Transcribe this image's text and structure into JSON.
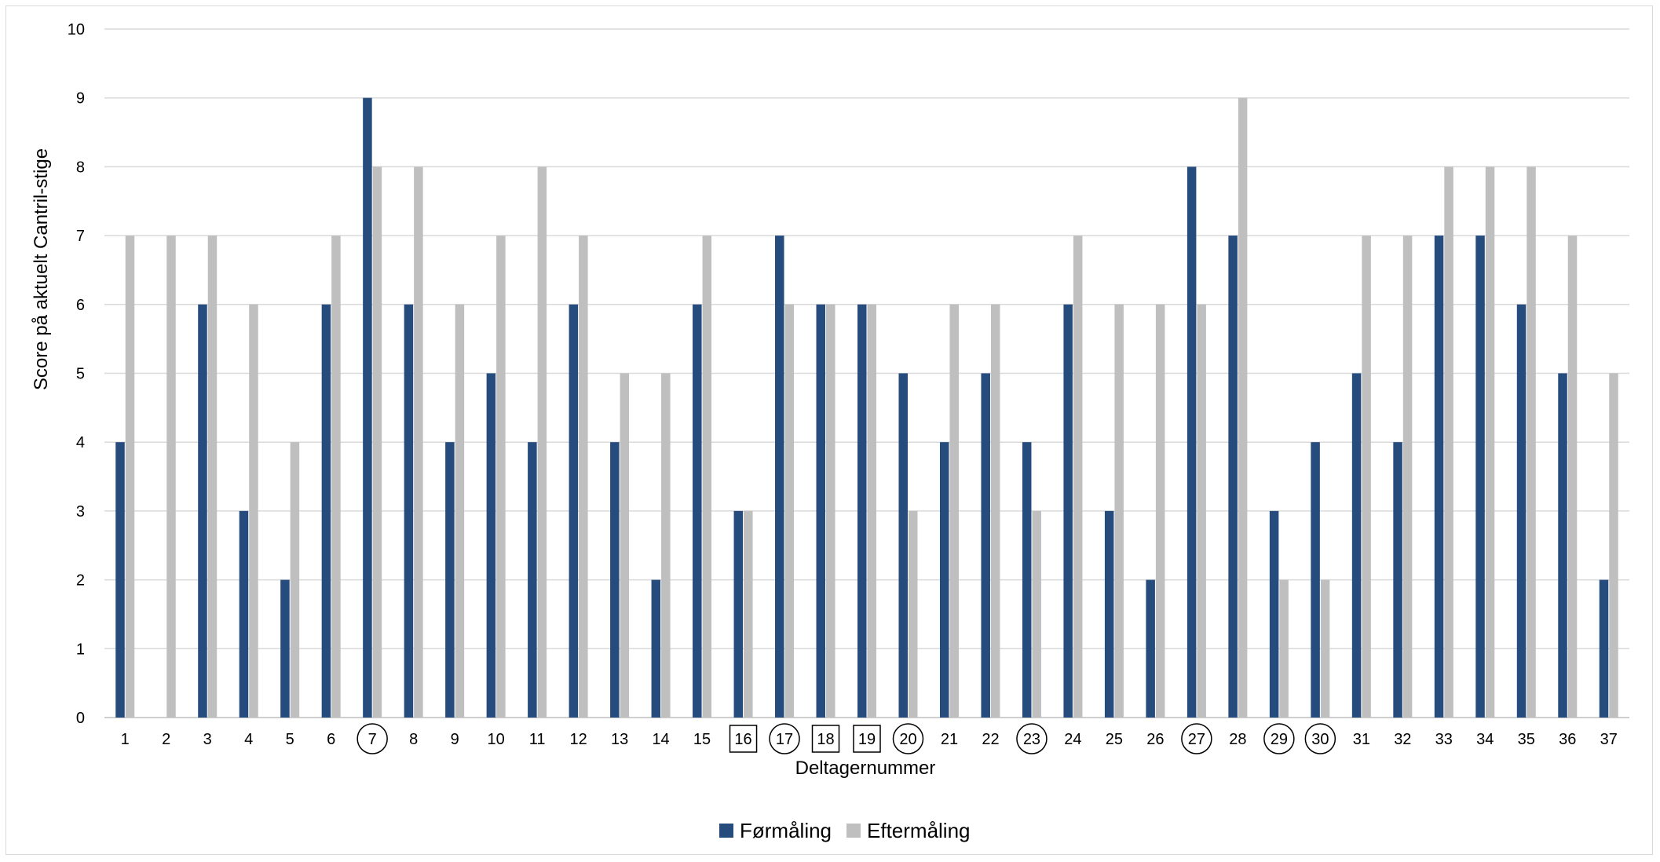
{
  "chart_data": {
    "type": "bar",
    "title": "",
    "xlabel": "Deltagernummer",
    "ylabel": "Score på aktuelt Cantril-stige",
    "ylim": [
      0,
      10
    ],
    "yticks": [
      "0",
      "1",
      "2",
      "3",
      "4",
      "5",
      "6",
      "7",
      "8",
      "9",
      "10"
    ],
    "grid": true,
    "legend_position": "bottom",
    "categories": [
      "1",
      "2",
      "3",
      "4",
      "5",
      "6",
      "7",
      "8",
      "9",
      "10",
      "11",
      "12",
      "13",
      "14",
      "15",
      "16",
      "17",
      "18",
      "19",
      "20",
      "21",
      "22",
      "23",
      "24",
      "25",
      "26",
      "27",
      "28",
      "29",
      "30",
      "31",
      "32",
      "33",
      "34",
      "35",
      "36",
      "37"
    ],
    "category_markers": {
      "circled": [
        "7",
        "17",
        "20",
        "23",
        "27",
        "29",
        "30"
      ],
      "boxed": [
        "16",
        "18",
        "19"
      ]
    },
    "series": [
      {
        "name": "Førmåling",
        "color": "#264b7d",
        "values": [
          4,
          0,
          6,
          3,
          2,
          6,
          9,
          6,
          4,
          5,
          4,
          6,
          4,
          2,
          6,
          3,
          7,
          6,
          6,
          5,
          4,
          5,
          4,
          6,
          3,
          2,
          8,
          7,
          3,
          4,
          5,
          4,
          7,
          7,
          6,
          5,
          2
        ]
      },
      {
        "name": "Eftermåling",
        "color": "#bfbfbf",
        "values": [
          7,
          7,
          7,
          6,
          4,
          7,
          8,
          8,
          6,
          7,
          8,
          7,
          5,
          5,
          7,
          3,
          6,
          6,
          6,
          3,
          6,
          6,
          3,
          7,
          6,
          6,
          6,
          9,
          2,
          2,
          7,
          7,
          8,
          8,
          8,
          7,
          5
        ]
      }
    ]
  }
}
